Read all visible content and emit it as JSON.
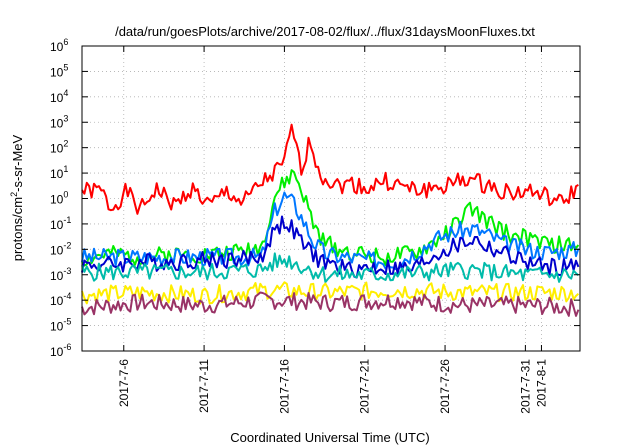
{
  "chart_data": {
    "type": "line",
    "title": "/data/run/goesPlots/archive/2017-08-02/flux/../flux/31daysMoonFluxes.txt",
    "xlabel": "Coordinated Universal Time (UTC)",
    "ylabel": "protons/cm2-s-sr-MeV",
    "ylabel_base": "protons/cm",
    "ylabel_sup": "2",
    "ylabel_tail": "-s-sr-MeV",
    "yscale": "log",
    "ylim_exp": [
      -6,
      6
    ],
    "xlim_days": [
      3.4,
      34.4
    ],
    "grid": true,
    "y_ticks": [
      {
        "exp": -6,
        "label": "10",
        "sup": "-6"
      },
      {
        "exp": -5,
        "label": "10",
        "sup": "-5"
      },
      {
        "exp": -4,
        "label": "10",
        "sup": "-4"
      },
      {
        "exp": -3,
        "label": "10",
        "sup": "-3"
      },
      {
        "exp": -2,
        "label": "10",
        "sup": "-2"
      },
      {
        "exp": -1,
        "label": "10",
        "sup": "-1"
      },
      {
        "exp": 0,
        "label": "10",
        "sup": "0"
      },
      {
        "exp": 1,
        "label": "10",
        "sup": "1"
      },
      {
        "exp": 2,
        "label": "10",
        "sup": "2"
      },
      {
        "exp": 3,
        "label": "10",
        "sup": "3"
      },
      {
        "exp": 4,
        "label": "10",
        "sup": "4"
      },
      {
        "exp": 5,
        "label": "10",
        "sup": "5"
      },
      {
        "exp": 6,
        "label": "10",
        "sup": "6"
      }
    ],
    "x_ticks": [
      {
        "day": 6,
        "label": "2017-7-6"
      },
      {
        "day": 11,
        "label": "2017-7-11"
      },
      {
        "day": 16,
        "label": "2017-7-16"
      },
      {
        "day": 21,
        "label": "2017-7-21"
      },
      {
        "day": 26,
        "label": "2017-7-26"
      },
      {
        "day": 31,
        "label": "2017-7-31"
      },
      {
        "day": 32,
        "label": "2017-8-1"
      }
    ],
    "series": [
      {
        "color": "#ff0000",
        "points": [
          [
            3.4,
            0.3
          ],
          [
            4.6,
            0.3
          ],
          [
            5.2,
            -0.4
          ],
          [
            6.2,
            0.3
          ],
          [
            7.0,
            -0.5
          ],
          [
            8.0,
            0.4
          ],
          [
            9.2,
            -0.3
          ],
          [
            10.2,
            0.4
          ],
          [
            11.4,
            -0.3
          ],
          [
            12.4,
            0.3
          ],
          [
            13.4,
            -0.2
          ],
          [
            14.4,
            0.5
          ],
          [
            15.4,
            1.0
          ],
          [
            16.0,
            1.4
          ],
          [
            16.5,
            2.9
          ],
          [
            17.0,
            1.1
          ],
          [
            17.6,
            2.3
          ],
          [
            18.2,
            1.0
          ],
          [
            19.2,
            0.5
          ],
          [
            20.2,
            0.6
          ],
          [
            21.2,
            0.4
          ],
          [
            22.2,
            0.7
          ],
          [
            23.2,
            0.5
          ],
          [
            24.2,
            0.3
          ],
          [
            25.2,
            0.4
          ],
          [
            26.2,
            0.5
          ],
          [
            27.2,
            0.8
          ],
          [
            28.2,
            0.6
          ],
          [
            29.2,
            0.4
          ],
          [
            30.2,
            0.2
          ],
          [
            31.2,
            0.3
          ],
          [
            32.2,
            0.1
          ],
          [
            33.2,
            -0.2
          ],
          [
            34.4,
            0.5
          ]
        ]
      },
      {
        "color": "#00ee00",
        "points": [
          [
            3.4,
            -2.4
          ],
          [
            5.0,
            -2.2
          ],
          [
            7.0,
            -2.3
          ],
          [
            9.0,
            -2.2
          ],
          [
            11.0,
            -2.2
          ],
          [
            13.0,
            -2.1
          ],
          [
            14.6,
            -1.9
          ],
          [
            15.4,
            0.1
          ],
          [
            16.0,
            0.6
          ],
          [
            16.6,
            1.0
          ],
          [
            17.2,
            0.1
          ],
          [
            17.8,
            -1.0
          ],
          [
            18.4,
            -1.7
          ],
          [
            20.0,
            -2.1
          ],
          [
            22.0,
            -2.3
          ],
          [
            24.0,
            -2.2
          ],
          [
            25.2,
            -1.8
          ],
          [
            26.2,
            -1.3
          ],
          [
            27.6,
            -0.4
          ],
          [
            28.8,
            -1.0
          ],
          [
            30.0,
            -1.4
          ],
          [
            31.2,
            -1.6
          ],
          [
            32.4,
            -1.8
          ],
          [
            34.4,
            -1.9
          ]
        ]
      },
      {
        "color": "#0077ff",
        "points": [
          [
            3.4,
            -2.3
          ],
          [
            14.6,
            -2.3
          ],
          [
            15.4,
            -0.5
          ],
          [
            16.0,
            0.1
          ],
          [
            16.6,
            -0.2
          ],
          [
            17.2,
            -0.9
          ],
          [
            17.8,
            -1.7
          ],
          [
            18.6,
            -2.2
          ],
          [
            21.0,
            -2.4
          ],
          [
            23.0,
            -2.5
          ],
          [
            24.2,
            -2.1
          ],
          [
            25.4,
            -1.6
          ],
          [
            26.6,
            -1.3
          ],
          [
            27.8,
            -1.2
          ],
          [
            28.6,
            -1.4
          ],
          [
            29.8,
            -1.8
          ],
          [
            31.0,
            -2.0
          ],
          [
            32.2,
            -2.1
          ],
          [
            34.4,
            -2.0
          ]
        ]
      },
      {
        "color": "#0000cc",
        "points": [
          [
            3.4,
            -2.6
          ],
          [
            5.0,
            -2.6
          ],
          [
            7.0,
            -2.5
          ],
          [
            9.0,
            -2.5
          ],
          [
            11.0,
            -2.4
          ],
          [
            13.0,
            -2.4
          ],
          [
            14.6,
            -2.3
          ],
          [
            15.4,
            -1.2
          ],
          [
            16.0,
            -0.9
          ],
          [
            16.6,
            -1.3
          ],
          [
            17.4,
            -2.0
          ],
          [
            18.4,
            -2.5
          ],
          [
            20.0,
            -2.8
          ],
          [
            22.0,
            -2.7
          ],
          [
            24.0,
            -2.8
          ],
          [
            25.4,
            -2.2
          ],
          [
            26.6,
            -1.9
          ],
          [
            27.8,
            -1.6
          ],
          [
            28.6,
            -1.9
          ],
          [
            29.8,
            -2.2
          ],
          [
            31.0,
            -2.5
          ],
          [
            32.2,
            -2.7
          ],
          [
            34.4,
            -2.7
          ]
        ]
      },
      {
        "color": "#00bbaa",
        "points": [
          [
            3.4,
            -2.9
          ],
          [
            7.0,
            -2.9
          ],
          [
            11.0,
            -2.9
          ],
          [
            14.6,
            -2.8
          ],
          [
            15.4,
            -2.5
          ],
          [
            16.2,
            -2.4
          ],
          [
            17.2,
            -2.7
          ],
          [
            18.6,
            -3.0
          ],
          [
            22.0,
            -3.0
          ],
          [
            25.0,
            -2.9
          ],
          [
            27.0,
            -2.8
          ],
          [
            29.0,
            -2.9
          ],
          [
            31.0,
            -3.0
          ],
          [
            34.4,
            -3.0
          ]
        ]
      },
      {
        "color": "#ffee00",
        "points": [
          [
            3.4,
            -3.8
          ],
          [
            7.0,
            -3.7
          ],
          [
            11.0,
            -3.8
          ],
          [
            15.0,
            -3.6
          ],
          [
            19.0,
            -3.7
          ],
          [
            23.0,
            -3.6
          ],
          [
            27.0,
            -3.7
          ],
          [
            31.0,
            -3.7
          ],
          [
            34.4,
            -3.7
          ]
        ]
      },
      {
        "color": "#993366",
        "points": [
          [
            3.4,
            -4.3
          ],
          [
            7.0,
            -4.1
          ],
          [
            11.0,
            -4.2
          ],
          [
            15.0,
            -4.0
          ],
          [
            19.0,
            -4.1
          ],
          [
            23.0,
            -4.0
          ],
          [
            27.0,
            -4.2
          ],
          [
            31.0,
            -4.2
          ],
          [
            34.4,
            -4.3
          ]
        ]
      }
    ]
  }
}
